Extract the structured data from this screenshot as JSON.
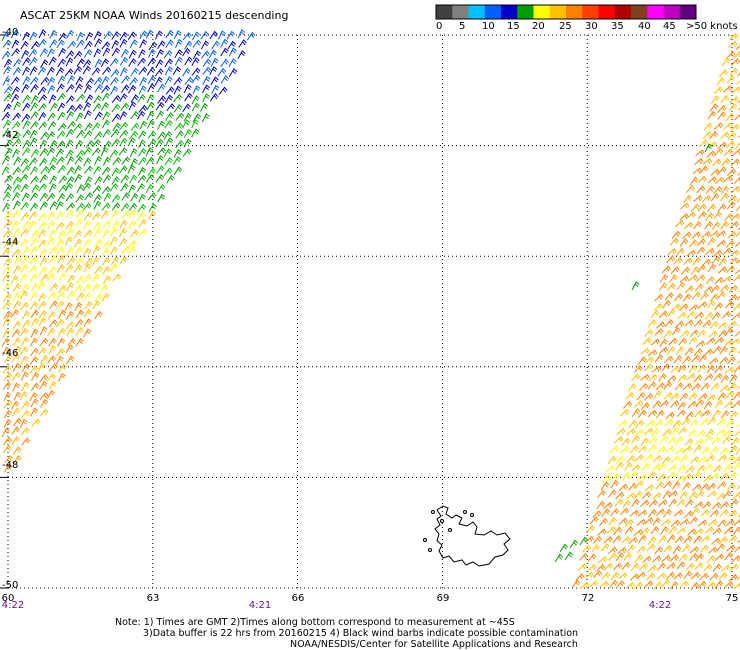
{
  "title": "ASCAT 25KM NOAA Winds 20160215 descending",
  "legend": {
    "ticks": [
      "0",
      "5",
      "10",
      "15",
      "20",
      "25",
      "30",
      "35",
      "40",
      "45",
      ">50 knots"
    ],
    "colors": [
      "#404040",
      "#808080",
      "#00c0ff",
      "#0060ff",
      "#0000c8",
      "#00a000",
      "#ffff00",
      "#ffc000",
      "#ff8000",
      "#ff4000",
      "#ff0000",
      "#b00000",
      "#804020",
      "#ff00ff",
      "#c000c0",
      "#600080"
    ]
  },
  "map": {
    "lon_ticks": [
      "60",
      "63",
      "66",
      "69",
      "72",
      "75"
    ],
    "lat_ticks": [
      "-40",
      "-42",
      "-44",
      "-46",
      "-48",
      "-50"
    ],
    "pass_times": [
      "4:22",
      "4:21",
      "4:22"
    ],
    "wind_regions": [
      {
        "name": "north-west",
        "speed_knots": "5-15",
        "color": "#0000c8"
      },
      {
        "name": "west-middle",
        "speed_knots": "15-20",
        "color": "#00a000"
      },
      {
        "name": "west-south",
        "speed_knots": "20-30",
        "color": "#ffc000"
      },
      {
        "name": "east-swath",
        "speed_knots": "20-30",
        "color": "#ff8000"
      }
    ]
  },
  "footer": {
    "line1": "Note: 1) Times are GMT 2)Times along bottom correspond to measurement at ~45S",
    "line2": "3)Data buffer is 22 hrs from 20160215 4) Black wind barbs indicate possible contamination",
    "line3": "NOAA/NESDIS/Center for Satellite Applications and Research"
  }
}
